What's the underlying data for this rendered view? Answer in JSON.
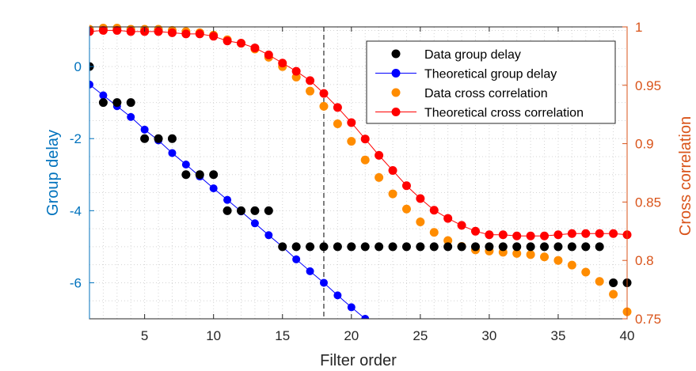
{
  "chart_data": {
    "type": "scatter",
    "xlabel": "Filter order",
    "ylabel_left": "Group delay",
    "ylabel_right": "Cross correlation",
    "xlim": [
      1,
      40
    ],
    "ylim_left": [
      -7,
      1.1
    ],
    "ylim_right": [
      0.75,
      1.0
    ],
    "xticks": [
      5,
      10,
      15,
      20,
      25,
      30,
      35,
      40
    ],
    "yticks_left": [
      0,
      -2,
      -4,
      -6
    ],
    "yticks_right": [
      1,
      0.95,
      0.9,
      0.85,
      0.8,
      0.75
    ],
    "ytick_labels_right": [
      "1",
      "0.95",
      "0.9",
      "0.85",
      "0.8",
      "0.75"
    ],
    "vertical_line_x": 18,
    "grid": "minor dotted",
    "legend_position": "top-right",
    "colors": {
      "left_axis": "#0072BD",
      "right_axis": "#D95319",
      "data_group_delay": "#000000",
      "theoretical_group_delay": "#0000FF",
      "data_cross_correlation": "#FF8C00",
      "theoretical_cross_correlation": "#FF0000"
    },
    "x": [
      1,
      2,
      3,
      4,
      5,
      6,
      7,
      8,
      9,
      10,
      11,
      12,
      13,
      14,
      15,
      16,
      17,
      18,
      19,
      20,
      21,
      22,
      23,
      24,
      25,
      26,
      27,
      28,
      29,
      30,
      31,
      32,
      33,
      34,
      35,
      36,
      37,
      38,
      39,
      40
    ],
    "series": [
      {
        "name": "Data group delay",
        "axis": "left",
        "style": "markers",
        "values": [
          0,
          -1,
          -1,
          -1,
          -2,
          -2,
          -2,
          -3,
          -3,
          -3,
          -4,
          -4,
          -4,
          -4,
          -5,
          -5,
          -5,
          -5,
          -5,
          -5,
          -5,
          -5,
          -5,
          -5,
          -5,
          -5,
          -5,
          -5,
          -5,
          -5,
          -5,
          -5,
          -5,
          -5,
          -5,
          -5,
          -5,
          -5,
          -6,
          -6
        ]
      },
      {
        "name": "Theoretical group delay",
        "axis": "left",
        "style": "line-markers",
        "values": [
          -0.5,
          -0.8,
          -1.1,
          -1.4,
          -1.75,
          -2.05,
          -2.4,
          -2.72,
          -3.05,
          -3.38,
          -3.7,
          -4.02,
          -4.35,
          -4.68,
          -5.0,
          -5.35,
          -5.68,
          -6.0,
          -6.35,
          -6.68,
          -7.0
        ]
      },
      {
        "name": "Data cross correlation",
        "axis": "right",
        "style": "markers",
        "values": [
          0.998,
          0.999,
          0.999,
          0.998,
          0.998,
          0.998,
          0.997,
          0.996,
          0.995,
          0.993,
          0.989,
          0.986,
          0.981,
          0.974,
          0.966,
          0.957,
          0.945,
          0.932,
          0.917,
          0.902,
          0.886,
          0.871,
          0.857,
          0.844,
          0.833,
          0.824,
          0.817,
          0.812,
          0.809,
          0.808,
          0.807,
          0.806,
          0.805,
          0.803,
          0.8,
          0.796,
          0.79,
          0.782,
          0.771,
          0.756
        ]
      },
      {
        "name": "Theoretical cross correlation",
        "axis": "right",
        "style": "line-markers",
        "values": [
          0.996,
          0.997,
          0.997,
          0.996,
          0.996,
          0.996,
          0.995,
          0.994,
          0.994,
          0.992,
          0.988,
          0.986,
          0.982,
          0.976,
          0.969,
          0.962,
          0.954,
          0.943,
          0.931,
          0.918,
          0.904,
          0.89,
          0.877,
          0.864,
          0.853,
          0.843,
          0.836,
          0.83,
          0.825,
          0.822,
          0.822,
          0.821,
          0.821,
          0.821,
          0.822,
          0.823,
          0.823,
          0.823,
          0.823,
          0.822
        ]
      }
    ],
    "legend": [
      "Data group delay",
      "Theoretical group delay",
      "Data cross correlation",
      "Theoretical cross correlation"
    ]
  }
}
